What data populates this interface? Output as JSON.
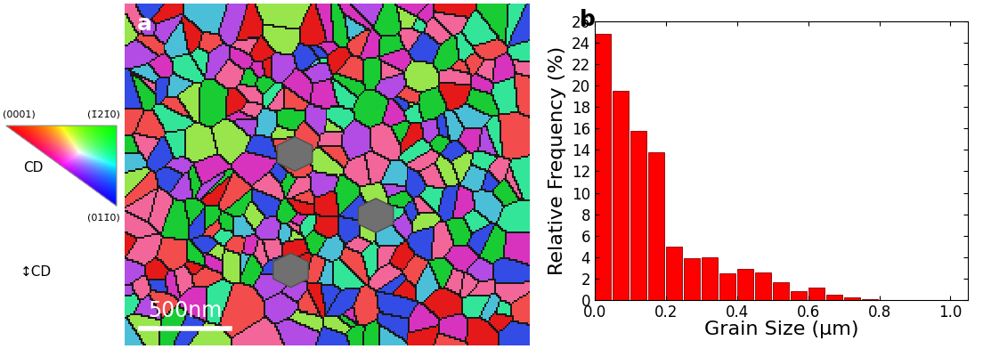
{
  "chart_data": {
    "type": "histogram",
    "annotations": [
      "b"
    ],
    "x_label": "Grain Size (μm)",
    "y_label": "Relative Frequency (%)",
    "bins": [
      0.0,
      0.05,
      0.1,
      0.15,
      0.2,
      0.25,
      0.3,
      0.35,
      0.4,
      0.45,
      0.5,
      0.55,
      0.6,
      0.65,
      0.7,
      0.75,
      0.8,
      0.85,
      0.9,
      0.95,
      1.0
    ],
    "values": [
      24.8,
      19.5,
      15.8,
      13.8,
      5.0,
      3.9,
      4.0,
      2.5,
      2.9,
      2.6,
      1.7,
      0.8,
      1.2,
      0.5,
      0.3,
      0.1,
      0.05,
      0.05,
      0.05,
      0.05
    ],
    "color": "#ff0000",
    "xlim": [
      0,
      1.05
    ],
    "xticks": [
      {
        "value": 0,
        "label": "0.0"
      },
      {
        "value": 0.2,
        "label": "0.2"
      },
      {
        "value": 0.4,
        "label": "0.4"
      },
      {
        "value": 0.6,
        "label": "0.6"
      },
      {
        "value": 0.8,
        "label": "0.8"
      },
      {
        "value": 1.0,
        "label": "1.0"
      }
    ],
    "ylim": [
      0,
      26
    ],
    "yticks": [
      0,
      2,
      4,
      6,
      8,
      10,
      12,
      14,
      16,
      18,
      20,
      22,
      24,
      26
    ],
    "grid": false
  },
  "micrograph": {
    "label": "a",
    "scale_bar": "500nm",
    "color_key": {
      "top_left": "(0001)",
      "top_right": "(1̄21̄0)",
      "bottom_right": "(011̄0)",
      "center": "CD"
    },
    "direction": "↕CD"
  }
}
